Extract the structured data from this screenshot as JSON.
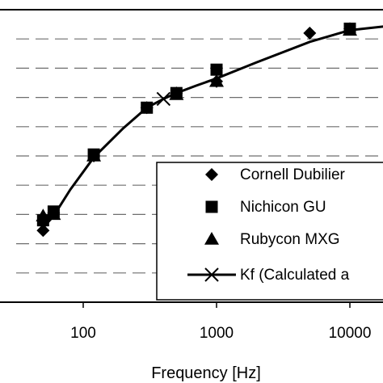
{
  "chart_data": {
    "type": "scatter",
    "title": "",
    "xlabel": "Frequency [Hz]",
    "ylabel": "",
    "x_scale": "log",
    "xlim": [
      30,
      20000
    ],
    "ylim": [
      0,
      10
    ],
    "x_ticks": [
      100,
      1000,
      10000
    ],
    "x_tick_labels": [
      "100",
      "1000",
      "10000"
    ],
    "grid": "horizontal dashed",
    "legend_position": "bottom-right",
    "series": [
      {
        "name": "Cornell Dubilier",
        "marker": "diamond",
        "x": [
          50,
          60,
          120,
          300,
          500,
          1000,
          5000,
          10000
        ],
        "y": [
          2.45,
          3.05,
          5.0,
          6.65,
          7.15,
          7.55,
          9.2,
          9.35
        ]
      },
      {
        "name": "Nichicon GU",
        "marker": "square",
        "x": [
          50,
          60,
          120,
          300,
          500,
          1000,
          10000
        ],
        "y": [
          2.8,
          3.1,
          5.05,
          6.65,
          7.15,
          7.95,
          9.35
        ]
      },
      {
        "name": "Rubycon MXG",
        "marker": "triangle",
        "x": [
          50,
          60,
          120,
          500,
          1000,
          10000
        ],
        "y": [
          2.95,
          3.0,
          5.0,
          7.1,
          7.55,
          9.3
        ]
      },
      {
        "name": "Kf (Calculated a",
        "marker": "x-line",
        "x": [
          50,
          60,
          80,
          120,
          200,
          300,
          400,
          500,
          700,
          1000,
          2000,
          5000,
          10000,
          20000
        ],
        "y": [
          2.55,
          2.95,
          3.85,
          4.95,
          5.95,
          6.65,
          6.95,
          7.15,
          7.4,
          7.65,
          8.2,
          8.9,
          9.3,
          9.45
        ]
      }
    ]
  }
}
